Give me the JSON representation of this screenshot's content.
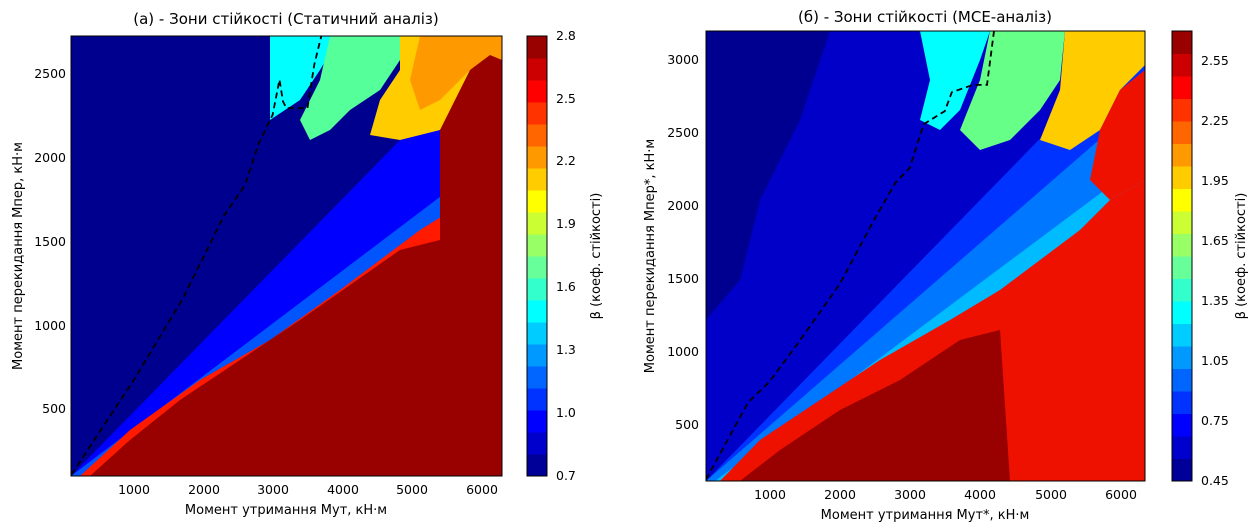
{
  "chart_data": [
    {
      "type": "heatmap",
      "title": "(а) - Зони стійкості (Статичний аналіз)",
      "xlabel": "Момент утримання Мут, кН·м",
      "ylabel": "Момент перекидання Мпер, кН·м",
      "xlim": [
        100,
        6300
      ],
      "ylim": [
        100,
        2720
      ],
      "xticks": [
        "1000",
        "2000",
        "3000",
        "4000",
        "5000",
        "6000"
      ],
      "yticks": [
        "500",
        "1000",
        "1500",
        "2000",
        "2500"
      ],
      "colorbar": {
        "label": "β (коеф. стійкості)",
        "min": 0.7,
        "max": 2.8,
        "ticks": [
          "0.7",
          "1.0",
          "1.3",
          "1.6",
          "1.9",
          "2.2",
          "2.5",
          "2.8"
        ]
      },
      "colormap": "jet",
      "boundary_line": {
        "style": "dashed",
        "color": "#000000",
        "points": [
          [
            110,
            110
          ],
          [
            1000,
            670
          ],
          [
            1700,
            1150
          ],
          [
            2000,
            1400
          ],
          [
            2300,
            1650
          ],
          [
            2600,
            1830
          ],
          [
            2800,
            2080
          ],
          [
            3000,
            2250
          ],
          [
            3100,
            2460
          ],
          [
            3150,
            2330
          ],
          [
            3200,
            2290
          ],
          [
            3500,
            2290
          ],
          [
            3600,
            2550
          ],
          [
            3700,
            2720
          ]
        ]
      }
    },
    {
      "type": "heatmap",
      "title": "(б) - Зони стійкості (МСЕ-аналіз)",
      "xlabel": "Момент утримання Мут*, кН·м",
      "ylabel": "Момент перекидання Мпер*, кН·м",
      "xlim": [
        100,
        6350
      ],
      "ylim": [
        100,
        3190
      ],
      "xticks": [
        "1000",
        "2000",
        "3000",
        "4000",
        "5000",
        "6000"
      ],
      "yticks": [
        "500",
        "1000",
        "1500",
        "2000",
        "2500",
        "3000"
      ],
      "colorbar": {
        "label": "β (коеф. стійкості)",
        "min": 0.45,
        "max": 2.7,
        "ticks": [
          "0.45",
          "0.75",
          "1.05",
          "1.35",
          "1.65",
          "1.95",
          "2.25",
          "2.55"
        ]
      },
      "colormap": "jet",
      "boundary_line": {
        "style": "dashed",
        "color": "#000000",
        "points": [
          [
            100,
            110
          ],
          [
            700,
            640
          ],
          [
            1000,
            780
          ],
          [
            1400,
            1040
          ],
          [
            2000,
            1450
          ],
          [
            2500,
            1900
          ],
          [
            2800,
            2150
          ],
          [
            3000,
            2250
          ],
          [
            3200,
            2550
          ],
          [
            3500,
            2640
          ],
          [
            3600,
            2770
          ],
          [
            3900,
            2820
          ],
          [
            4100,
            2820
          ],
          [
            4200,
            3190
          ]
        ]
      }
    }
  ]
}
